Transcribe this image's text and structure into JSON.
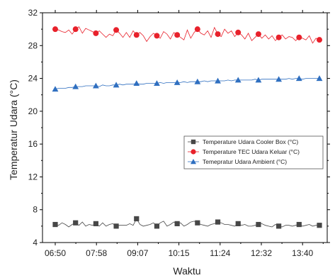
{
  "chart_data": {
    "type": "line",
    "title": "",
    "xlabel": "Waktu",
    "ylabel": "Temperatur Udara (°C)",
    "ylim": [
      4,
      32
    ],
    "yticks": [
      "4",
      "8",
      "12",
      "16",
      "20",
      "24",
      "28",
      "32"
    ],
    "x_tick_labels": [
      "06:50",
      "07:58",
      "09:07",
      "10:15",
      "11:24",
      "12:32",
      "13:40"
    ],
    "grid": false,
    "legend_position": "right",
    "series": [
      {
        "name": "Temperature Udara Cooler Box (°C)",
        "marker": "square",
        "color": "#474747",
        "values": [
          6.2,
          6.1,
          6.4,
          6.2,
          5.9,
          6.2,
          6.4,
          6.1,
          6.5,
          6.0,
          6.2,
          6.1,
          6.3,
          6.0,
          6.4,
          6.0,
          6.2,
          6.3,
          6.0,
          6.1,
          6.1,
          6.1,
          6.3,
          6.1,
          6.9,
          6.2,
          6.0,
          6.1,
          6.2,
          6.4,
          6.0,
          6.4,
          6.6,
          6.0,
          6.2,
          6.5,
          6.3,
          6.4,
          6.0,
          6.2,
          6.5,
          6.6,
          6.4,
          6.2,
          6.1,
          6.0,
          6.2,
          6.3,
          6.5,
          6.4,
          6.2,
          6.2,
          6.1,
          6.0,
          6.3,
          6.1,
          6.2,
          6.0,
          6.0,
          6.1,
          6.2,
          6.3,
          6.1,
          6.0,
          5.9,
          6.2,
          6.0,
          5.9,
          6.1,
          6.1,
          6.0,
          6.1,
          6.2,
          6.0,
          6.1,
          6.2,
          6.0,
          6.1,
          6.1
        ]
      },
      {
        "name": "Temperature TEC Udara Keluar (°C)",
        "marker": "circle",
        "color": "#e8212b",
        "values": [
          30.0,
          29.9,
          29.7,
          29.6,
          29.9,
          29.4,
          30.0,
          30.3,
          29.5,
          30.1,
          29.9,
          29.7,
          29.5,
          29.8,
          29.4,
          29.0,
          29.4,
          29.2,
          29.9,
          29.5,
          29.0,
          29.6,
          29.0,
          29.8,
          29.3,
          29.6,
          29.2,
          28.5,
          29.1,
          29.5,
          29.2,
          28.9,
          29.7,
          29.4,
          28.8,
          29.6,
          29.3,
          29.0,
          28.7,
          29.9,
          28.9,
          29.6,
          30.0,
          29.5,
          29.3,
          29.8,
          29.0,
          30.2,
          29.4,
          29.1,
          30.0,
          29.5,
          29.8,
          29.1,
          29.6,
          29.3,
          28.8,
          29.5,
          28.6,
          29.0,
          29.4,
          28.9,
          29.3,
          28.8,
          29.2,
          28.6,
          29.0,
          29.3,
          28.8,
          29.1,
          29.0,
          28.6,
          29.0,
          28.9,
          28.7,
          29.2,
          28.3,
          28.9,
          28.7
        ]
      },
      {
        "name": "Temepratur Udara Ambient (°C)",
        "marker": "triangle",
        "color": "#2f6fc0",
        "values": [
          22.7,
          22.8,
          22.8,
          22.8,
          22.9,
          22.9,
          23.0,
          23.0,
          23.0,
          23.1,
          23.1,
          23.1,
          23.1,
          23.0,
          23.2,
          23.1,
          23.1,
          23.2,
          23.2,
          23.3,
          23.2,
          23.3,
          23.3,
          23.3,
          23.4,
          23.3,
          23.3,
          23.4,
          23.4,
          23.4,
          23.4,
          23.5,
          23.4,
          23.5,
          23.5,
          23.5,
          23.5,
          23.5,
          23.6,
          23.5,
          23.6,
          23.6,
          23.6,
          23.6,
          23.7,
          23.6,
          23.7,
          23.7,
          23.7,
          23.7,
          23.7,
          23.8,
          23.7,
          23.8,
          23.8,
          23.8,
          23.8,
          23.8,
          23.8,
          23.9,
          23.8,
          23.9,
          23.9,
          23.9,
          23.9,
          23.9,
          23.9,
          23.9,
          23.9,
          24.0,
          23.9,
          24.0,
          24.0,
          23.9,
          24.0,
          24.0,
          24.0,
          24.0,
          24.0
        ]
      }
    ]
  }
}
